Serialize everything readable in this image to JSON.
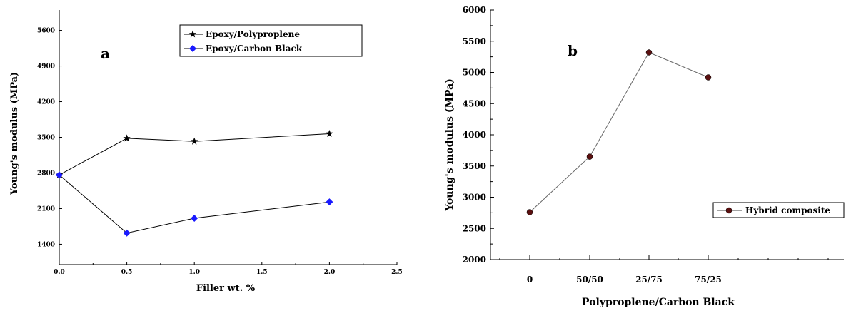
{
  "chart_data": [
    {
      "type": "line",
      "panel_label": "a",
      "xlabel": "Filler wt. %",
      "ylabel": "Young's modulus (MPa)",
      "xlim": [
        0,
        2.5
      ],
      "ylim": [
        1000,
        6000
      ],
      "xticks": [
        "0.0",
        "0.5",
        "1.0",
        "1.5",
        "2.0",
        "2.5"
      ],
      "yticks": [
        "1400",
        "2100",
        "2800",
        "3500",
        "4200",
        "4900",
        "5600"
      ],
      "legend_position": "top-right",
      "series": [
        {
          "name": "Epoxy/Polyproplene",
          "marker": "star",
          "color": "#000000",
          "x": [
            0,
            0.5,
            1.0,
            2.0
          ],
          "y": [
            2760,
            3480,
            3420,
            3570
          ]
        },
        {
          "name": "Epoxy/Carbon Black",
          "marker": "diamond",
          "color": "#1a1aff",
          "x": [
            0,
            0.5,
            1.0,
            2.0
          ],
          "y": [
            2760,
            1620,
            1910,
            2230
          ]
        }
      ]
    },
    {
      "type": "line",
      "panel_label": "b",
      "xlabel": "Polyproplene/Carbon Black",
      "ylabel": "Young's modulus (MPa)",
      "categories": [
        "0",
        "50/50",
        "25/75",
        "75/25"
      ],
      "ylim": [
        2000,
        6000
      ],
      "yticks": [
        "2000",
        "2500",
        "3000",
        "3500",
        "4000",
        "4500",
        "5000",
        "5500",
        "6000"
      ],
      "legend_position": "bottom-right",
      "series": [
        {
          "name": "Hybrid composite",
          "marker": "circle",
          "color": "#5a1010",
          "values": [
            2760,
            3650,
            5320,
            4920
          ]
        }
      ]
    }
  ]
}
